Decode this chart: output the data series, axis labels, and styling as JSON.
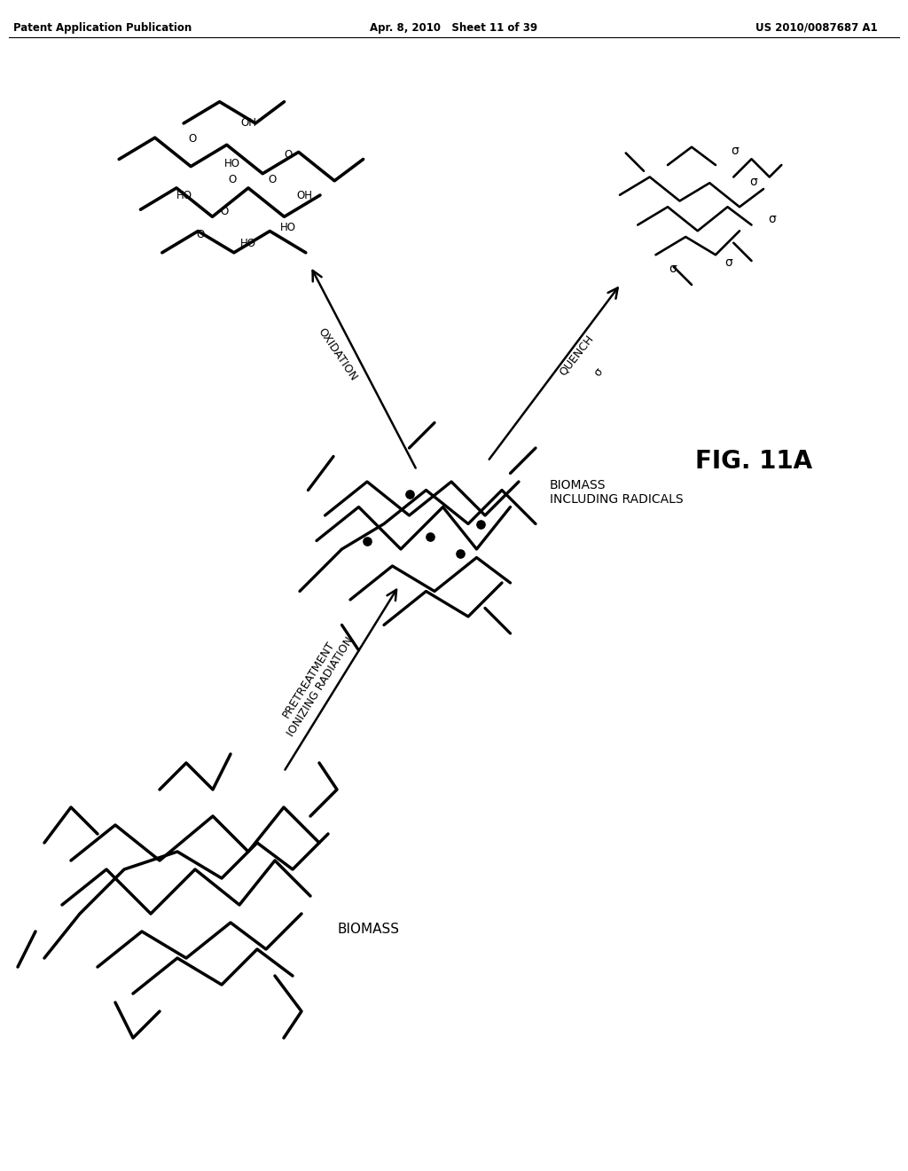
{
  "title": "FIG. 11A",
  "header_left": "Patent Application Publication",
  "header_center": "Apr. 8, 2010   Sheet 11 of 39",
  "header_right": "US 2010/0087687 A1",
  "background_color": "#ffffff",
  "text_color": "#000000",
  "labels": {
    "biomass": "BIOMASS",
    "biomass_radicals": "BIOMASS\nINCLUDING RADICALS",
    "pretreatment": "PRETREATMENT\nIONIZING RADIATION",
    "oxidation": "OXIDATION",
    "quench": "QUENCH",
    "fig": "FIG. 11A"
  }
}
